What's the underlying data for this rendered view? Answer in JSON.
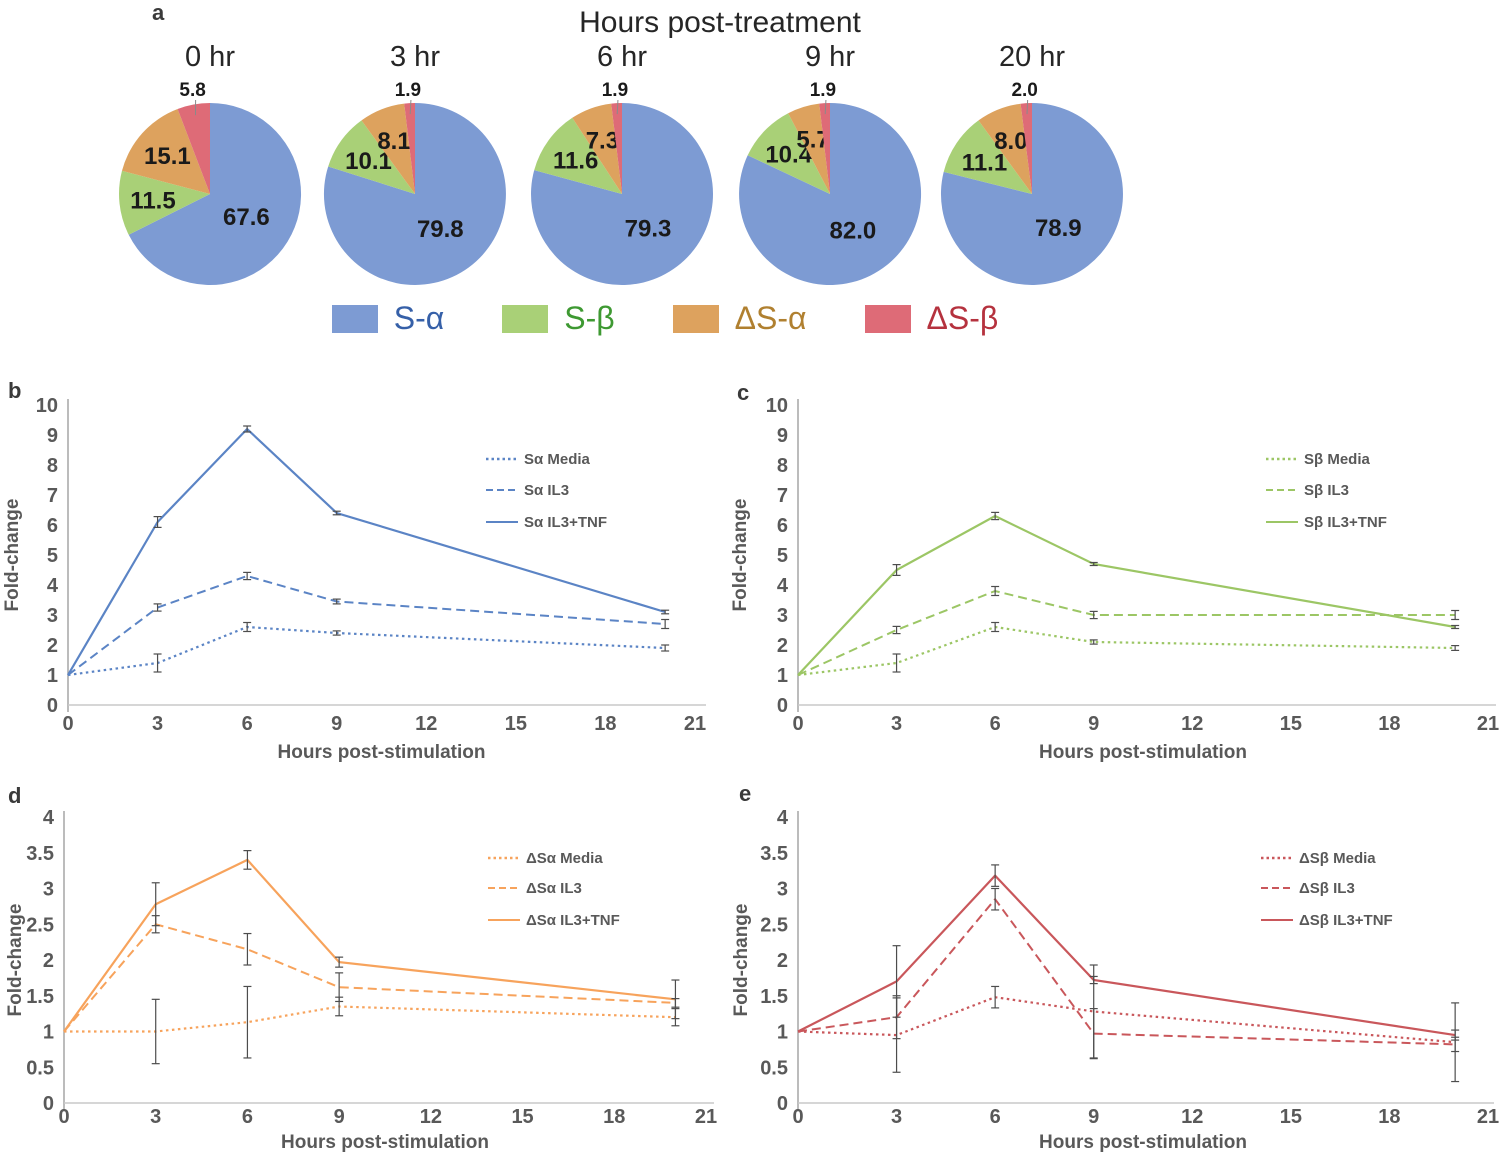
{
  "chart_data": [
    {
      "type": "pie",
      "label": "a",
      "title": "Hours post-treatment",
      "categories": [
        "S-α",
        "S-β",
        "ΔS-α",
        "ΔS-β"
      ],
      "colors": [
        "#7D9BD3",
        "#A9D077",
        "#DDA25E",
        "#DE6B77"
      ],
      "legend": [
        {
          "label": "S-α",
          "text_color": "#3660A8"
        },
        {
          "label": "S-β",
          "text_color": "#3E9932"
        },
        {
          "label": "ΔS-α",
          "text_color": "#B08030"
        },
        {
          "label": "ΔS-β",
          "text_color": "#B5323E"
        }
      ],
      "pies": [
        {
          "title": "0 hr",
          "values": [
            "67.6",
            "11.5",
            "15.1",
            "5.8"
          ]
        },
        {
          "title": "3 hr",
          "values": [
            "79.8",
            "10.1",
            "8.1",
            "1.9"
          ]
        },
        {
          "title": "6 hr",
          "values": [
            "79.3",
            "11.6",
            "7.3",
            "1.9"
          ]
        },
        {
          "title": "9 hr",
          "values": [
            "82.0",
            "10.4",
            "5.7",
            "1.9"
          ]
        },
        {
          "title": "20 hr",
          "values": [
            "78.9",
            "11.1",
            "8.0",
            "2.0"
          ]
        }
      ]
    },
    {
      "type": "line",
      "label": "b",
      "color": "#5B84C5",
      "xlabel": "Hours post-stimulation",
      "ylabel": "Fold-change",
      "xlim": [
        0,
        21
      ],
      "ylim": [
        0,
        10
      ],
      "ytick_step": 1,
      "xticks": [
        0,
        3,
        6,
        9,
        12,
        15,
        18,
        21
      ],
      "legend_position": "right-inside",
      "grid": false,
      "x": [
        0,
        3,
        6,
        9,
        20
      ],
      "series": [
        {
          "name": "Sα Media",
          "dash": "dotted",
          "y": [
            1,
            1.4,
            2.6,
            2.4,
            1.9
          ],
          "err": [
            0,
            0.3,
            0.15,
            0.07,
            0.1
          ]
        },
        {
          "name": "Sα IL3",
          "dash": "dashed",
          "y": [
            1,
            3.25,
            4.3,
            3.45,
            2.7
          ],
          "err": [
            0,
            0.12,
            0.12,
            0.08,
            0.15
          ]
        },
        {
          "name": "Sα IL3+TNF",
          "dash": "solid",
          "y": [
            1,
            6.1,
            9.2,
            6.4,
            3.1
          ],
          "err": [
            0,
            0.18,
            0.1,
            0.06,
            0.06
          ]
        }
      ]
    },
    {
      "type": "line",
      "label": "c",
      "color": "#9CC665",
      "xlabel": "Hours post-stimulation",
      "ylabel": "Fold-change",
      "xlim": [
        0,
        21
      ],
      "ylim": [
        0,
        10
      ],
      "ytick_step": 1,
      "xticks": [
        0,
        3,
        6,
        9,
        12,
        15,
        18,
        21
      ],
      "legend_position": "right-inside",
      "grid": false,
      "x": [
        0,
        3,
        6,
        9,
        20
      ],
      "series": [
        {
          "name": "Sβ Media",
          "dash": "dotted",
          "y": [
            1,
            1.4,
            2.6,
            2.1,
            1.9
          ],
          "err": [
            0,
            0.3,
            0.15,
            0.07,
            0.08
          ]
        },
        {
          "name": "Sβ IL3",
          "dash": "dashed",
          "y": [
            1,
            2.5,
            3.8,
            3.0,
            3.0
          ],
          "err": [
            0,
            0.12,
            0.15,
            0.12,
            0.15
          ]
        },
        {
          "name": "Sβ IL3+TNF",
          "dash": "solid",
          "y": [
            1,
            4.5,
            6.3,
            4.7,
            2.6
          ],
          "err": [
            0,
            0.18,
            0.12,
            0.05,
            0.05
          ]
        }
      ]
    },
    {
      "type": "line",
      "label": "d",
      "color": "#F7A35C",
      "xlabel": "Hours post-stimulation",
      "ylabel": "Fold-change",
      "xlim": [
        0,
        21
      ],
      "ylim": [
        0,
        4
      ],
      "ytick_step": 0.5,
      "xticks": [
        0,
        3,
        6,
        9,
        12,
        15,
        18,
        21
      ],
      "legend_position": "right-inside",
      "grid": false,
      "x": [
        0,
        3,
        6,
        9,
        20
      ],
      "series": [
        {
          "name": "ΔSα Media",
          "dash": "dotted",
          "y": [
            1,
            1.0,
            1.13,
            1.35,
            1.2
          ],
          "err": [
            0,
            0.45,
            0.5,
            0.13,
            0.12
          ]
        },
        {
          "name": "ΔSα IL3",
          "dash": "dashed",
          "y": [
            1,
            2.5,
            2.15,
            1.62,
            1.4
          ],
          "err": [
            0,
            0.12,
            0.22,
            0.2,
            0.06
          ]
        },
        {
          "name": "ΔSα IL3+TNF",
          "dash": "solid",
          "y": [
            1,
            2.78,
            3.4,
            1.97,
            1.45
          ],
          "err": [
            0,
            0.3,
            0.13,
            0.07,
            0.27
          ]
        }
      ]
    },
    {
      "type": "line",
      "label": "e",
      "color": "#C9575B",
      "xlabel": "Hours post-stimulation",
      "ylabel": "Fold-change",
      "xlim": [
        0,
        21
      ],
      "ylim": [
        0,
        4
      ],
      "ytick_step": 0.5,
      "xticks": [
        0,
        3,
        6,
        9,
        12,
        15,
        18,
        21
      ],
      "legend_position": "right-inside",
      "grid": false,
      "x": [
        0,
        3,
        6,
        9,
        20
      ],
      "series": [
        {
          "name": "ΔSβ Media",
          "dash": "dotted",
          "y": [
            1,
            0.95,
            1.48,
            1.28,
            0.85
          ],
          "err": [
            0,
            0.52,
            0.15,
            0.65,
            0.55
          ]
        },
        {
          "name": "ΔSβ IL3",
          "dash": "dashed",
          "y": [
            1,
            1.2,
            2.85,
            0.97,
            0.82
          ],
          "err": [
            0,
            0.3,
            0.15,
            0.35,
            0.1
          ]
        },
        {
          "name": "ΔSβ IL3+TNF",
          "dash": "solid",
          "y": [
            1,
            1.7,
            3.18,
            1.72,
            0.95
          ],
          "err": [
            0,
            0.5,
            0.15,
            0.05,
            0.07
          ]
        }
      ]
    }
  ]
}
